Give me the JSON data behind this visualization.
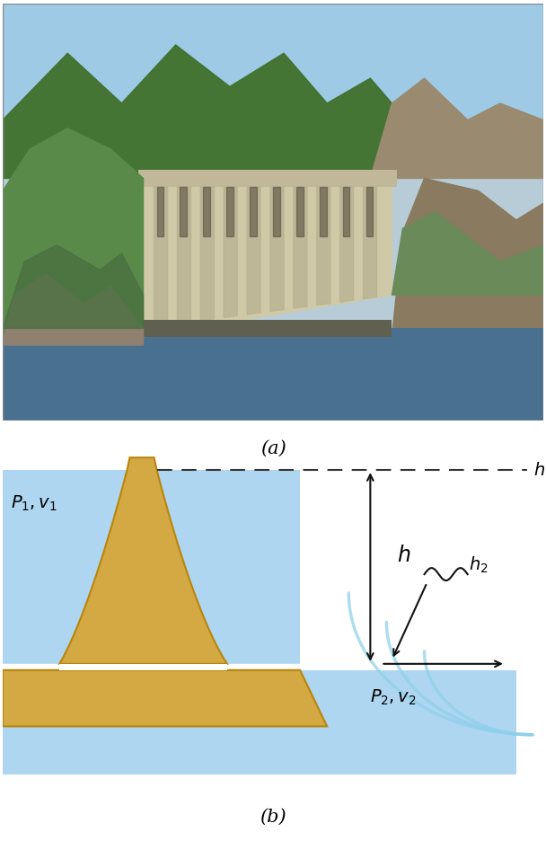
{
  "fig_width": 6.08,
  "fig_height": 9.37,
  "bg_color": "#ffffff",
  "water_color_light": "#c8e6f5",
  "water_color": "#aed6f1",
  "water_color_exit": "#b8ddf5",
  "dam_body_color": "#d4a843",
  "dam_body_edge": "#b8860b",
  "label_a": "(a)",
  "label_b": "(b)",
  "label_fontsize": 15,
  "annotation_fontsize": 14,
  "dashed_line_color": "#333333",
  "arrow_color": "#111111",
  "photo_bg": "#c8dce8",
  "sky_color": "#9ecae6",
  "mountain_color": "#4a7a3a",
  "mountain_dark": "#3a6a2a",
  "rock_color": "#9a8a70",
  "dam_concrete": "#cfc9a8",
  "dam_stripe": "#b8b090",
  "river_color": "#4a7090",
  "tree_color": "#5a8a4a",
  "foreground_rock": "#908070"
}
